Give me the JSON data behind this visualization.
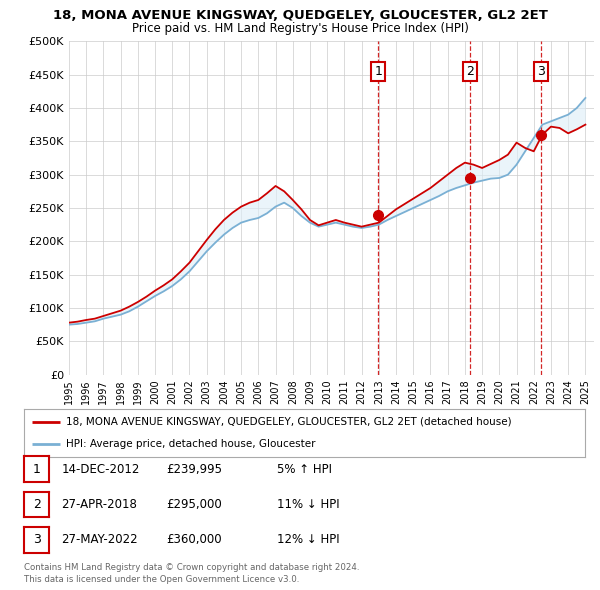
{
  "title": "18, MONA AVENUE KINGSWAY, QUEDGELEY, GLOUCESTER, GL2 2ET",
  "subtitle": "Price paid vs. HM Land Registry's House Price Index (HPI)",
  "ylim": [
    0,
    500000
  ],
  "yticks": [
    0,
    50000,
    100000,
    150000,
    200000,
    250000,
    300000,
    350000,
    400000,
    450000,
    500000
  ],
  "ytick_labels": [
    "£0",
    "£50K",
    "£100K",
    "£150K",
    "£200K",
    "£250K",
    "£300K",
    "£350K",
    "£400K",
    "£450K",
    "£500K"
  ],
  "xlim_start": 1995.0,
  "xlim_end": 2025.5,
  "transaction_dates": [
    2012.96,
    2018.32,
    2022.41
  ],
  "transaction_labels": [
    "1",
    "2",
    "3"
  ],
  "transaction_prices": [
    239995,
    295000,
    360000
  ],
  "transaction_text": [
    "14-DEC-2012",
    "27-APR-2018",
    "27-MAY-2022"
  ],
  "transaction_pct": [
    "5% ↑ HPI",
    "11% ↓ HPI",
    "12% ↓ HPI"
  ],
  "legend_line1": "18, MONA AVENUE KINGSWAY, QUEDGELEY, GLOUCESTER, GL2 2ET (detached house)",
  "legend_line2": "HPI: Average price, detached house, Gloucester",
  "footnote1": "Contains HM Land Registry data © Crown copyright and database right 2024.",
  "footnote2": "This data is licensed under the Open Government Licence v3.0.",
  "line_color_red": "#cc0000",
  "line_color_blue": "#7ab0d4",
  "fill_color_blue": "#ddeef8",
  "marker_color": "#cc0000",
  "vline_color": "#cc0000",
  "background_color": "#ffffff",
  "grid_color": "#cccccc",
  "hpi_years": [
    1995.0,
    1995.5,
    1996.0,
    1996.5,
    1997.0,
    1997.5,
    1998.0,
    1998.5,
    1999.0,
    1999.5,
    2000.0,
    2000.5,
    2001.0,
    2001.5,
    2002.0,
    2002.5,
    2003.0,
    2003.5,
    2004.0,
    2004.5,
    2005.0,
    2005.5,
    2006.0,
    2006.5,
    2007.0,
    2007.5,
    2008.0,
    2008.5,
    2009.0,
    2009.5,
    2010.0,
    2010.5,
    2011.0,
    2011.5,
    2012.0,
    2012.5,
    2013.0,
    2013.5,
    2014.0,
    2014.5,
    2015.0,
    2015.5,
    2016.0,
    2016.5,
    2017.0,
    2017.5,
    2018.0,
    2018.5,
    2019.0,
    2019.5,
    2020.0,
    2020.5,
    2021.0,
    2021.5,
    2022.0,
    2022.5,
    2023.0,
    2023.5,
    2024.0,
    2024.5,
    2025.0
  ],
  "hpi_values": [
    75000,
    76000,
    78000,
    80000,
    84000,
    87000,
    90000,
    95000,
    102000,
    110000,
    118000,
    125000,
    133000,
    143000,
    155000,
    170000,
    185000,
    198000,
    210000,
    220000,
    228000,
    232000,
    235000,
    242000,
    252000,
    258000,
    250000,
    238000,
    228000,
    222000,
    225000,
    228000,
    225000,
    222000,
    220000,
    222000,
    225000,
    232000,
    238000,
    244000,
    250000,
    256000,
    262000,
    268000,
    275000,
    280000,
    284000,
    288000,
    291000,
    294000,
    295000,
    300000,
    315000,
    335000,
    355000,
    375000,
    380000,
    385000,
    390000,
    400000,
    415000
  ],
  "red_years": [
    1995.0,
    1995.5,
    1996.0,
    1996.5,
    1997.0,
    1997.5,
    1998.0,
    1998.5,
    1999.0,
    1999.5,
    2000.0,
    2000.5,
    2001.0,
    2001.5,
    2002.0,
    2002.5,
    2003.0,
    2003.5,
    2004.0,
    2004.5,
    2005.0,
    2005.5,
    2006.0,
    2006.5,
    2007.0,
    2007.5,
    2008.0,
    2008.5,
    2009.0,
    2009.5,
    2010.0,
    2010.5,
    2011.0,
    2011.5,
    2012.0,
    2012.5,
    2013.0,
    2013.5,
    2014.0,
    2014.5,
    2015.0,
    2015.5,
    2016.0,
    2016.5,
    2017.0,
    2017.5,
    2018.0,
    2018.5,
    2019.0,
    2019.5,
    2020.0,
    2020.5,
    2021.0,
    2021.5,
    2022.0,
    2022.5,
    2023.0,
    2023.5,
    2024.0,
    2024.5,
    2025.0
  ],
  "red_values": [
    78000,
    79500,
    82000,
    84000,
    88000,
    92000,
    96000,
    102000,
    109000,
    117000,
    126000,
    134000,
    143000,
    155000,
    168000,
    185000,
    202000,
    218000,
    232000,
    243000,
    252000,
    258000,
    262000,
    272000,
    283000,
    275000,
    262000,
    248000,
    232000,
    224000,
    228000,
    232000,
    228000,
    225000,
    222000,
    225000,
    228000,
    238000,
    248000,
    256000,
    264000,
    272000,
    280000,
    290000,
    300000,
    310000,
    318000,
    315000,
    310000,
    316000,
    322000,
    330000,
    348000,
    340000,
    335000,
    360000,
    372000,
    370000,
    362000,
    368000,
    375000
  ]
}
